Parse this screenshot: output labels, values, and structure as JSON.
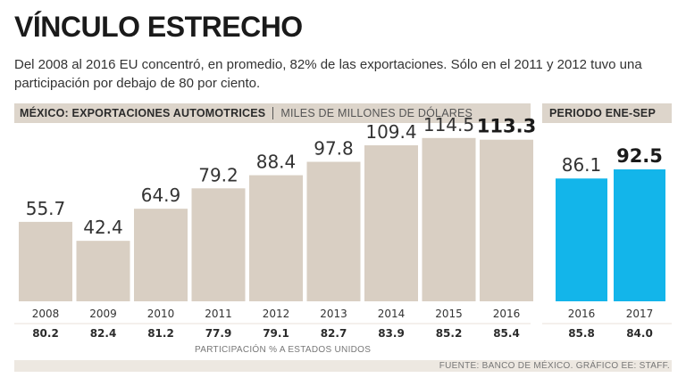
{
  "title": "VÍNCULO ESTRECHO",
  "subtitle": "Del 2008 al 2016 EU concentró, en promedio, 82% de las exportaciones. Sólo en el 2011 y 2012 tuvo una participación por debajo de 80 por ciento.",
  "left_header": {
    "bold": "MÉXICO: EXPORTACIONES AUTOMOTRICES",
    "light": "MILES DE MILLONES DE DÓLARES"
  },
  "right_header": {
    "bold": "PERIODO ENE-SEP"
  },
  "participation_label": "PARTICIPACIÓN % A ESTADOS UNIDOS",
  "source": "FUENTE: BANCO DE MÉXICO. GRÁFICO EE: STAFF.",
  "colors": {
    "annual_bar": "#d9cfc3",
    "period_bar": "#13b5ea",
    "strip": "#ede8e1",
    "divider": "#e8e2da"
  },
  "chart_data": [
    {
      "type": "bar",
      "title": "MÉXICO: EXPORTACIONES AUTOMOTRICES",
      "ylabel": "MILES DE MILLONES DE DÓLARES",
      "ylim": [
        0,
        120
      ],
      "categories": [
        "2008",
        "2009",
        "2010",
        "2011",
        "2012",
        "2013",
        "2014",
        "2015",
        "2016"
      ],
      "values": [
        55.7,
        42.4,
        64.9,
        79.2,
        88.4,
        97.8,
        109.4,
        114.5,
        113.3
      ],
      "value_labels": [
        "55.7",
        "42.4",
        "64.9",
        "79.2",
        "88.4",
        "97.8",
        "109.4",
        "114.5",
        "113.3"
      ],
      "highlight_last": true,
      "participation_us_pct": [
        80.2,
        82.4,
        81.2,
        77.9,
        79.1,
        82.7,
        83.9,
        85.2,
        85.4
      ],
      "participation_labels": [
        "80.2",
        "82.4",
        "81.2",
        "77.9",
        "79.1",
        "82.7",
        "83.9",
        "85.2",
        "85.4"
      ]
    },
    {
      "type": "bar",
      "title": "PERIODO ENE-SEP",
      "ylim": [
        0,
        120
      ],
      "categories": [
        "2016",
        "2017"
      ],
      "values": [
        86.1,
        92.5
      ],
      "value_labels": [
        "86.1",
        "92.5"
      ],
      "highlight_last": true,
      "participation_us_pct": [
        85.8,
        84.0
      ],
      "participation_labels": [
        "85.8",
        "84.0"
      ]
    }
  ]
}
